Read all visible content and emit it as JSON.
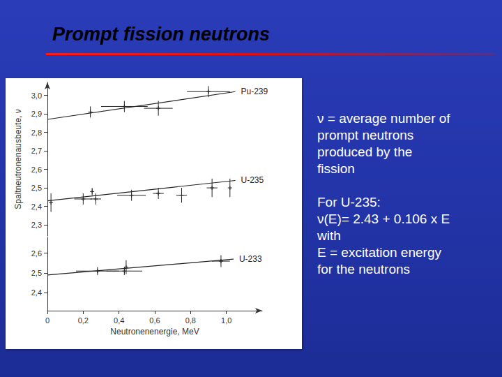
{
  "slide": {
    "title": "Prompt fission neutrons",
    "text": [
      [
        "ν = average number of",
        "prompt neutrons",
        "produced by the",
        "fission"
      ],
      [
        "For U-235:",
        "ν(E)= 2.43 + 0.106 x E",
        "with",
        "E = excitation energy",
        "for the neutrons"
      ]
    ]
  },
  "chart_data": [
    {
      "type": "scatter",
      "ylabel": "Spaltneutronenausbeute, ν",
      "xlim": [
        0,
        1.2
      ],
      "ylim": [
        2.24,
        3.07
      ],
      "yticks": [
        {
          "value": 2.3,
          "label": "2,3"
        },
        {
          "value": 2.4,
          "label": "2,4"
        },
        {
          "value": 2.5,
          "label": "2,5"
        },
        {
          "value": 2.6,
          "label": "2,6"
        },
        {
          "value": 2.7,
          "label": "2,7"
        },
        {
          "value": 2.8,
          "label": "2,8"
        },
        {
          "value": 2.9,
          "label": "2,9"
        },
        {
          "value": 3.0,
          "label": "3,0"
        }
      ],
      "tick_labels": "y",
      "grid": false,
      "marker": "cross",
      "series": [
        {
          "name": "Pu-239",
          "color": "#222222",
          "x": [
            0.24,
            0.43,
            0.62,
            0.9
          ],
          "values": [
            2.91,
            2.94,
            2.93,
            3.02
          ],
          "xerr": [
            0,
            0.13,
            0.08,
            0.12
          ],
          "yerr": [
            0.03,
            0.03,
            0.04,
            0.03
          ],
          "fit_x": [
            0,
            1.05
          ],
          "fit_values": [
            2.87,
            3.02
          ]
        },
        {
          "name": "U-235",
          "color": "#222222",
          "x": [
            0.02,
            0.2,
            0.27,
            0.25,
            0.47,
            0.62,
            0.75,
            0.92,
            1.02
          ],
          "values": [
            2.42,
            2.44,
            2.44,
            2.48,
            2.46,
            2.47,
            2.46,
            2.5,
            2.5
          ],
          "xerr": [
            0,
            0.05,
            0.03,
            0,
            0.08,
            0.03,
            0.03,
            0.03,
            0
          ],
          "yerr": [
            0.05,
            0.03,
            0.03,
            0.02,
            0.03,
            0.03,
            0.04,
            0.05,
            0.05
          ],
          "fit_x": [
            0,
            1.05
          ],
          "fit_values": [
            2.43,
            2.54
          ]
        }
      ]
    },
    {
      "type": "scatter",
      "xlabel": "Neutronenenergie, MeV",
      "xlim": [
        0,
        1.2
      ],
      "xticks": [
        0,
        {
          "value": 0.2,
          "label": "0,2"
        },
        {
          "value": 0.4,
          "label": "0,4"
        },
        {
          "value": 0.6,
          "label": "0,6"
        },
        {
          "value": 0.8,
          "label": "0,8"
        },
        {
          "value": 1.0,
          "label": "1,0"
        }
      ],
      "ylim": [
        2.31,
        2.68
      ],
      "yticks": [
        {
          "value": 2.4,
          "label": "2,4"
        },
        {
          "value": 2.5,
          "label": "2,5"
        },
        {
          "value": 2.6,
          "label": "2,6"
        }
      ],
      "grid": false,
      "marker": "cross",
      "series": [
        {
          "name": "U-233",
          "color": "#222222",
          "x": [
            0.28,
            0.43,
            0.44,
            0.97
          ],
          "values": [
            2.51,
            2.51,
            2.53,
            2.56
          ],
          "xerr": [
            0.12,
            0.1,
            0,
            0.05
          ],
          "yerr": [
            0.02,
            0.02,
            0.035,
            0.03
          ],
          "fit_x": [
            0,
            1.04
          ],
          "fit_values": [
            2.49,
            2.57
          ]
        }
      ]
    }
  ]
}
